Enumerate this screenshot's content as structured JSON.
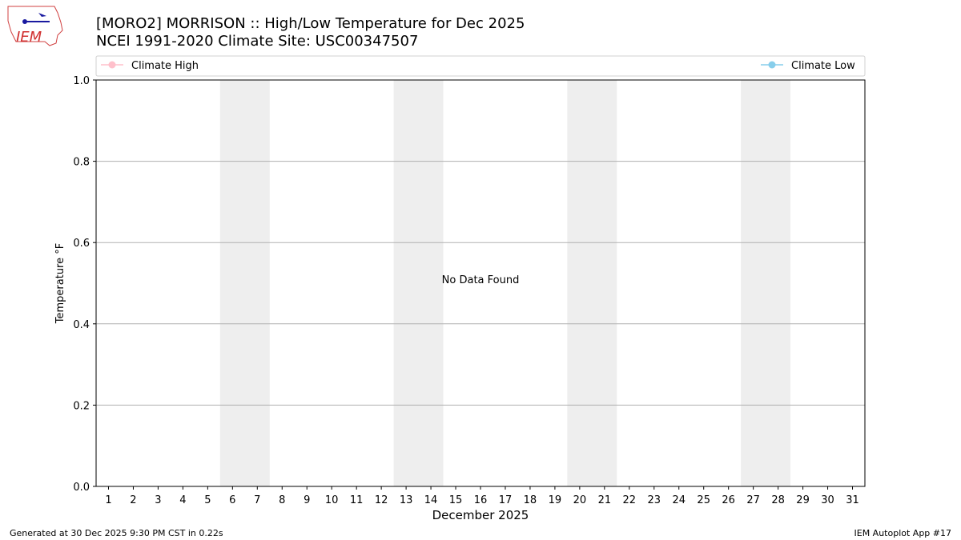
{
  "logo_text": "IEM",
  "chart_data": {
    "type": "line",
    "title": "[MORO2] MORRISON :: High/Low Temperature for Dec 2025",
    "subtitle": "NCEI 1991-2020 Climate Site: USC00347507",
    "y_label": "Temperature °F",
    "x_label": "December 2025",
    "annotation": "No Data Found",
    "x": [
      1,
      2,
      3,
      4,
      5,
      6,
      7,
      8,
      9,
      10,
      11,
      12,
      13,
      14,
      15,
      16,
      17,
      18,
      19,
      20,
      21,
      22,
      23,
      24,
      25,
      26,
      27,
      28,
      29,
      30,
      31
    ],
    "xlim": [
      0.5,
      31.5
    ],
    "xticks": [
      1,
      2,
      3,
      4,
      5,
      6,
      7,
      8,
      9,
      10,
      11,
      12,
      13,
      14,
      15,
      16,
      17,
      18,
      19,
      20,
      21,
      22,
      23,
      24,
      25,
      26,
      27,
      28,
      29,
      30,
      31
    ],
    "ylim": [
      0,
      1
    ],
    "yticks": [
      {
        "value": 0,
        "label": "0.0"
      },
      {
        "value": 0.2,
        "label": "0.2"
      },
      {
        "value": 0.4,
        "label": "0.4"
      },
      {
        "value": 0.6,
        "label": "0.6"
      },
      {
        "value": 0.8,
        "label": "0.8"
      },
      {
        "value": 1,
        "label": "1.0"
      }
    ],
    "grid": true,
    "weekend_bands": [
      [
        5.5,
        7.5
      ],
      [
        12.5,
        14.5
      ],
      [
        19.5,
        21.5
      ],
      [
        26.5,
        28.5
      ]
    ],
    "band_color": "#eeeeee",
    "series": [
      {
        "name": "Climate High",
        "color": "#ffc0cb",
        "values": [
          null,
          null,
          null,
          null,
          null,
          null,
          null,
          null,
          null,
          null,
          null,
          null,
          null,
          null,
          null,
          null,
          null,
          null,
          null,
          null,
          null,
          null,
          null,
          null,
          null,
          null,
          null,
          null,
          null,
          null,
          null
        ]
      },
      {
        "name": "Climate Low",
        "color": "#87ceeb",
        "values": [
          null,
          null,
          null,
          null,
          null,
          null,
          null,
          null,
          null,
          null,
          null,
          null,
          null,
          null,
          null,
          null,
          null,
          null,
          null,
          null,
          null,
          null,
          null,
          null,
          null,
          null,
          null,
          null,
          null,
          null,
          null
        ]
      }
    ]
  },
  "footer": {
    "left": "Generated at 30 Dec 2025 9:30 PM CST in 0.22s",
    "right": "IEM Autoplot App #17"
  }
}
